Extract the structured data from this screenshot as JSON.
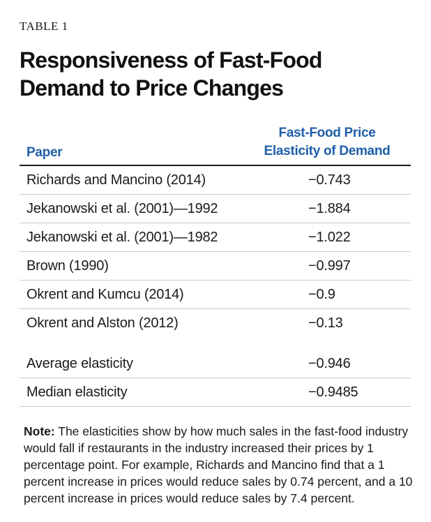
{
  "kicker": "TABLE 1",
  "title": {
    "line1": "Responsiveness of Fast-Food",
    "line2": "Demand to Price Changes"
  },
  "table": {
    "header": {
      "paper": "Paper",
      "elasticity_line1": "Fast-Food Price",
      "elasticity_line2": "Elasticity of Demand"
    },
    "rows": [
      {
        "paper": "Richards and Mancino (2014)",
        "value": "−0.743"
      },
      {
        "paper": "Jekanowski et al. (2001)—1992",
        "value": "−1.884"
      },
      {
        "paper": "Jekanowski et al. (2001)—1982",
        "value": "−1.022"
      },
      {
        "paper": "Brown (1990)",
        "value": "−0.997"
      },
      {
        "paper": "Okrent and Kumcu (2014)",
        "value": "−0.9"
      },
      {
        "paper": "Okrent and Alston (2012)",
        "value": "−0.13"
      }
    ],
    "summary": [
      {
        "paper": "Average elasticity",
        "value": "−0.946"
      },
      {
        "paper": "Median elasticity",
        "value": "−0.9485"
      }
    ]
  },
  "note": {
    "label": "Note:",
    "text": " The elasticities show by how much sales in the fast-food industry would fall if restaurants in the industry increased their prices by 1 percentage point. For example, Richards and Mancino find that a 1 percent increase in prices would reduce sales by 0.74 percent, and a 10 percent increase in prices would reduce sales by 7.4 percent."
  },
  "colors": {
    "header_blue": "#1f5ea8",
    "text": "#1a1a1a",
    "rule": "#c9c9c9"
  }
}
